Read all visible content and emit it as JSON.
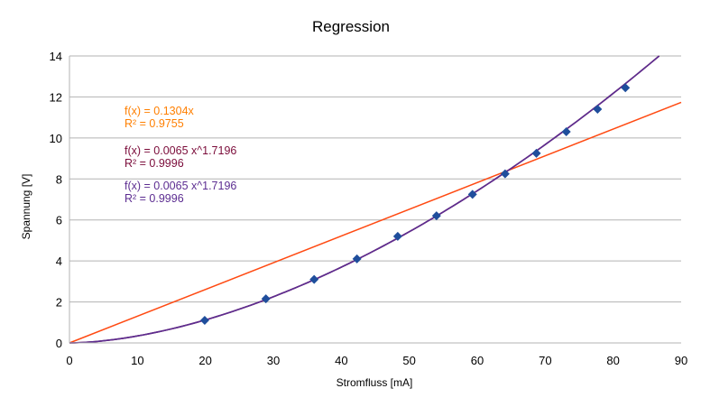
{
  "chart_data": {
    "type": "scatter",
    "title": "Regression",
    "xlabel": "Stromfluss [mA]",
    "ylabel": "Spannung [V]",
    "xlim": [
      0,
      90
    ],
    "ylim": [
      0,
      14
    ],
    "xticks": [
      0,
      10,
      20,
      30,
      40,
      50,
      60,
      70,
      80,
      90
    ],
    "yticks": [
      0,
      2,
      4,
      6,
      8,
      10,
      12,
      14
    ],
    "grid": "horizontal",
    "legend": "none",
    "points": {
      "x": [
        19.9,
        28.9,
        36.0,
        42.3,
        48.3,
        54.0,
        59.3,
        64.1,
        68.7,
        73.1,
        77.7,
        81.8
      ],
      "y": [
        1.1,
        2.15,
        3.1,
        4.1,
        5.2,
        6.2,
        7.25,
        8.25,
        9.25,
        10.3,
        11.4,
        12.45
      ],
      "color": "#1f4e9c"
    },
    "trendlines": [
      {
        "kind": "linear",
        "coef": 0.1304,
        "color": "#ff4a12",
        "equation": "f(x) = 0.1304x",
        "r2": "R² = 0.9755"
      },
      {
        "kind": "power",
        "coef": 0.0065,
        "exponent": 1.7196,
        "color": "#7b0c3a",
        "equation": "f(x) = 0.0065 x^1.7196",
        "r2": "R² = 0.9996"
      },
      {
        "kind": "power",
        "coef": 0.0065,
        "exponent": 1.7196,
        "color": "#5c2d91",
        "equation": "f(x) = 0.0065 x^1.7196",
        "r2": "R² = 0.9996"
      }
    ],
    "annotation_colors": [
      "#ff7f00",
      "#7b0c3a",
      "#5c2d91"
    ]
  }
}
